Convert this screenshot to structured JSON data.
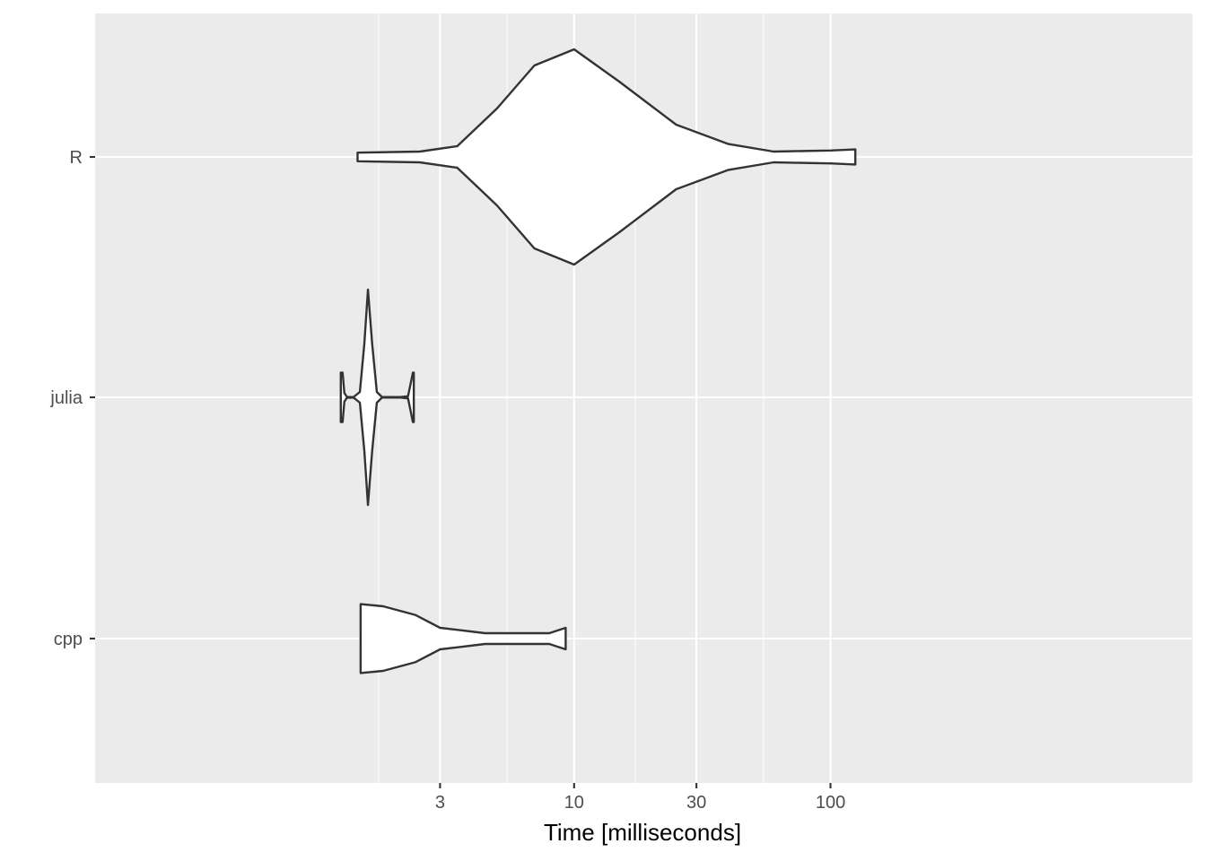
{
  "chart_data": {
    "type": "violin",
    "orientation": "horizontal",
    "xlabel": "Time [milliseconds]",
    "ylabel": "",
    "x_scale": "log10",
    "xlim": [
      1.1,
      130
    ],
    "x_ticks": [
      3,
      10,
      30,
      100
    ],
    "x_tick_labels": [
      "3",
      "10",
      "30",
      "100"
    ],
    "x_minor_ticks": [
      1.73,
      5.48,
      17.3,
      54.8
    ],
    "grid": true,
    "categories": [
      "R",
      "julia",
      "cpp"
    ],
    "series": [
      {
        "category": "R",
        "min": 1.43,
        "max": 125,
        "density_profile": [
          [
            1.43,
            0.04
          ],
          [
            2.5,
            0.05
          ],
          [
            3.5,
            0.1
          ],
          [
            5,
            0.45
          ],
          [
            7,
            0.85
          ],
          [
            10,
            1.0
          ],
          [
            15,
            0.7
          ],
          [
            25,
            0.3
          ],
          [
            40,
            0.12
          ],
          [
            60,
            0.05
          ],
          [
            100,
            0.06
          ],
          [
            125,
            0.07
          ]
        ]
      },
      {
        "category": "julia",
        "min": 1.23,
        "max": 2.37,
        "density_profile": [
          [
            1.23,
            0.23
          ],
          [
            1.25,
            0.23
          ],
          [
            1.27,
            0.04
          ],
          [
            1.3,
            0.004
          ],
          [
            1.38,
            0.003
          ],
          [
            1.46,
            0.05
          ],
          [
            1.52,
            0.5
          ],
          [
            1.57,
            1.0
          ],
          [
            1.63,
            0.5
          ],
          [
            1.7,
            0.05
          ],
          [
            1.78,
            0.003
          ],
          [
            2.1,
            0.003
          ],
          [
            2.25,
            0.01
          ],
          [
            2.3,
            0.12
          ],
          [
            2.35,
            0.23
          ],
          [
            2.37,
            0.23
          ]
        ]
      },
      {
        "category": "cpp",
        "min": 1.47,
        "max": 9.27,
        "density_profile": [
          [
            1.47,
            0.32
          ],
          [
            1.8,
            0.3
          ],
          [
            2.4,
            0.22
          ],
          [
            3,
            0.1
          ],
          [
            4.5,
            0.05
          ],
          [
            6.5,
            0.05
          ],
          [
            8,
            0.05
          ],
          [
            9.27,
            0.1
          ]
        ]
      }
    ]
  }
}
